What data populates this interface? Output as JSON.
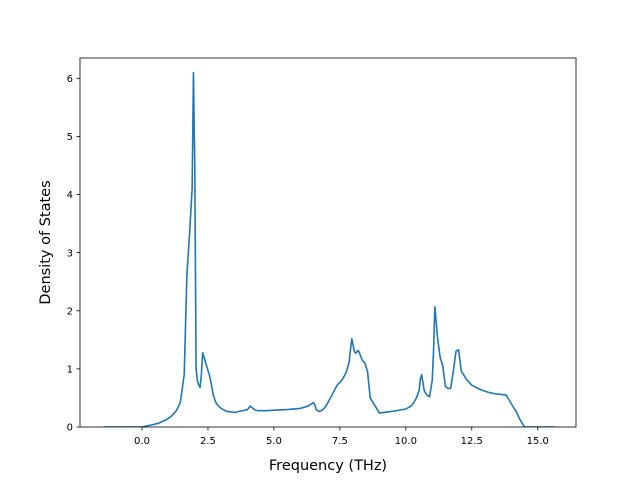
{
  "chart_data": {
    "type": "line",
    "title": "",
    "xlabel": "Frequency (THz)",
    "ylabel": "Density of States",
    "xlim": [
      -2.35,
      16.45
    ],
    "ylim": [
      0,
      6.35
    ],
    "x_ticks": [
      0.0,
      2.5,
      5.0,
      7.5,
      10.0,
      12.5,
      15.0
    ],
    "x_tick_labels": [
      "0.0",
      "2.5",
      "5.0",
      "7.5",
      "10.0",
      "12.5",
      "15.0"
    ],
    "y_ticks": [
      0,
      1,
      2,
      3,
      4,
      5,
      6
    ],
    "y_tick_labels": [
      "0",
      "1",
      "2",
      "3",
      "4",
      "5",
      "6"
    ],
    "grid": false,
    "legend": "none",
    "series": [
      {
        "color": "#1f77b4",
        "x": [
          -1.45,
          -1.0,
          -0.5,
          0.0,
          0.3,
          0.6,
          0.9,
          1.1,
          1.3,
          1.45,
          1.6,
          1.7,
          1.8,
          1.85,
          1.9,
          1.95,
          2.0,
          2.05,
          2.1,
          2.15,
          2.2,
          2.25,
          2.3,
          2.45,
          2.55,
          2.6,
          2.7,
          2.8,
          2.9,
          3.0,
          3.2,
          3.5,
          3.8,
          4.0,
          4.1,
          4.2,
          4.3,
          4.4,
          4.5,
          4.7,
          5.0,
          5.5,
          6.0,
          6.3,
          6.5,
          6.55,
          6.6,
          6.7,
          6.8,
          6.9,
          7.0,
          7.2,
          7.4,
          7.6,
          7.75,
          7.85,
          7.95,
          8.05,
          8.1,
          8.2,
          8.35,
          8.45,
          8.55,
          8.65,
          9.0,
          9.5,
          10.0,
          10.2,
          10.3,
          10.4,
          10.5,
          10.55,
          10.6,
          10.7,
          10.8,
          10.9,
          11.0,
          11.05,
          11.1,
          11.2,
          11.3,
          11.4,
          11.5,
          11.6,
          11.7,
          11.8,
          11.9,
          12.0,
          12.1,
          12.3,
          12.5,
          12.8,
          13.1,
          13.4,
          13.6,
          13.8,
          14.0,
          14.2,
          14.3,
          14.5,
          14.8,
          15.2,
          15.65
        ],
        "y": [
          0.0,
          0.0,
          0.0,
          0.0,
          0.03,
          0.06,
          0.12,
          0.18,
          0.28,
          0.42,
          0.9,
          2.6,
          3.3,
          3.7,
          4.1,
          6.1,
          4.5,
          1.0,
          0.8,
          0.72,
          0.68,
          0.9,
          1.28,
          1.05,
          0.9,
          0.8,
          0.55,
          0.42,
          0.36,
          0.32,
          0.27,
          0.25,
          0.28,
          0.3,
          0.36,
          0.32,
          0.29,
          0.28,
          0.28,
          0.28,
          0.29,
          0.3,
          0.32,
          0.36,
          0.42,
          0.38,
          0.3,
          0.27,
          0.28,
          0.32,
          0.38,
          0.55,
          0.72,
          0.82,
          0.95,
          1.12,
          1.52,
          1.3,
          1.27,
          1.32,
          1.15,
          1.1,
          0.95,
          0.5,
          0.24,
          0.27,
          0.31,
          0.36,
          0.42,
          0.5,
          0.62,
          0.82,
          0.9,
          0.62,
          0.55,
          0.52,
          0.8,
          1.3,
          2.07,
          1.55,
          1.2,
          1.05,
          0.7,
          0.66,
          0.67,
          0.96,
          1.3,
          1.33,
          0.96,
          0.82,
          0.72,
          0.65,
          0.6,
          0.57,
          0.56,
          0.55,
          0.4,
          0.25,
          0.15,
          0.0,
          0.0,
          0.0,
          0.0
        ]
      }
    ]
  }
}
